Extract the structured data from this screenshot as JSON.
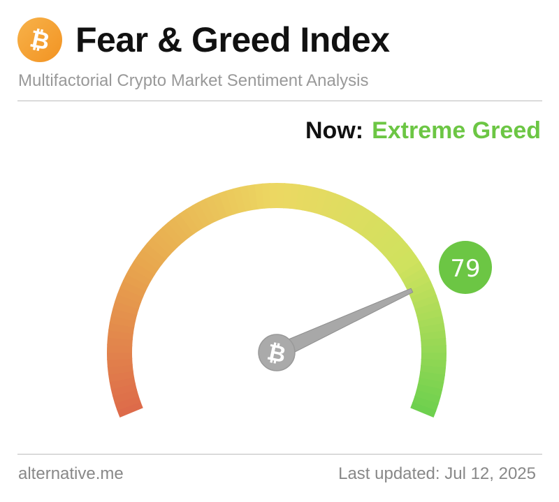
{
  "header": {
    "logo_icon": "bitcoin-icon",
    "title": "Fear & Greed Index",
    "subtitle": "Multifactorial Crypto Market Sentiment Analysis"
  },
  "status": {
    "now_label": "Now:",
    "classification": "Extreme Greed",
    "classification_color": "#6cc644"
  },
  "gauge": {
    "value": 79,
    "value_label": "79",
    "min": 0,
    "max": 100,
    "badge_color": "#6cc644",
    "gradient_colors": [
      "#dd6a4a",
      "#e8a74e",
      "#ecd862",
      "#cfe25e",
      "#6cd04e"
    ],
    "hub_icon": "bitcoin-icon"
  },
  "footer": {
    "source": "alternative.me",
    "last_updated": "Last updated: Jul 12, 2025"
  }
}
